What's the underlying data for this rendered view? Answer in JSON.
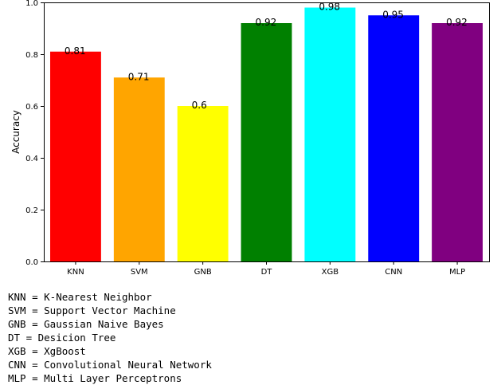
{
  "chart_data": {
    "type": "bar",
    "categories": [
      "KNN",
      "SVM",
      "GNB",
      "DT",
      "XGB",
      "CNN",
      "MLP"
    ],
    "values": [
      0.81,
      0.71,
      0.6,
      0.92,
      0.98,
      0.95,
      0.92
    ],
    "value_labels": [
      "0.81",
      "0.71",
      "0.6",
      "0.92",
      "0.98",
      "0.95",
      "0.92"
    ],
    "colors": [
      "#ff0000",
      "#ffa500",
      "#ffff00",
      "#008000",
      "#00ffff",
      "#0000ff",
      "#800080"
    ],
    "title": "",
    "xlabel": "",
    "ylabel": "Accuracy",
    "ylim": [
      0,
      1.0
    ],
    "yticks": [
      "0.0",
      "0.2",
      "0.4",
      "0.6",
      "0.8",
      "1.0"
    ],
    "ytick_values": [
      0,
      0.2,
      0.4,
      0.6,
      0.8,
      1.0
    ],
    "grid": false
  },
  "legend_lines": [
    "KNN = K-Nearest Neighbor",
    "SVM = Support Vector Machine",
    "GNB = Gaussian Naive Bayes",
    "DT = Desicion Tree",
    "XGB = XgBoost",
    "CNN = Convolutional Neural Network",
    "MLP = Multi Layer Perceptrons"
  ]
}
